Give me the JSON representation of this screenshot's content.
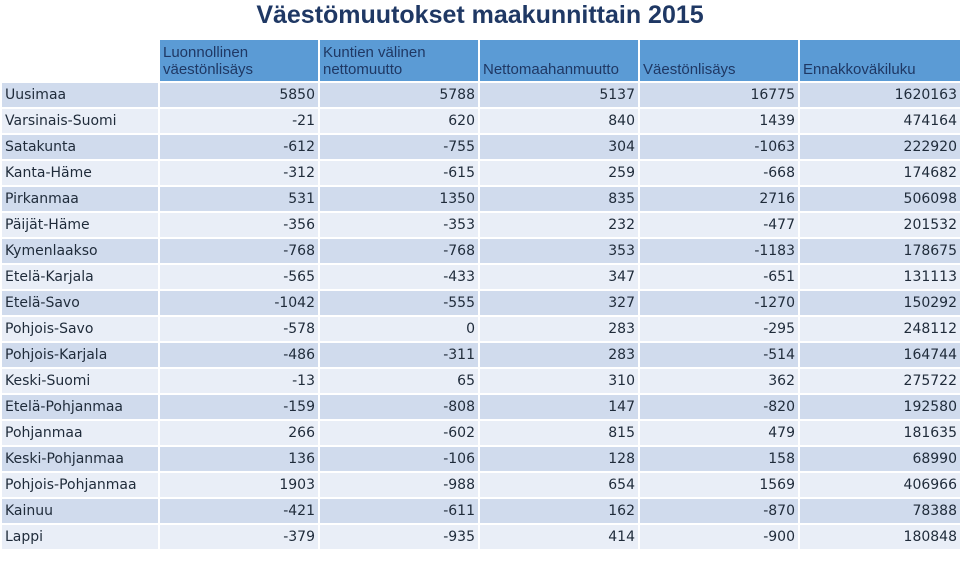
{
  "title": "Väestömuutokset maakunnittain 2015",
  "chart_data": {
    "type": "table",
    "title": "Väestömuutokset maakunnittain 2015",
    "columns": [
      "",
      "Luonnollinen väestönlisäys",
      "Kuntien välinen nettomuutto",
      "Nettomaahanmuutto",
      "Väestönlisäys",
      "Ennakkoväkiluku"
    ],
    "column_lines": [
      [],
      [
        "Luonnollinen",
        "väestönlisäys"
      ],
      [
        "Kuntien välinen",
        "nettomuutto"
      ],
      [
        "Nettomaahanmuutto"
      ],
      [
        "Väestönlisäys"
      ],
      [
        "Ennakkoväkiluku"
      ]
    ],
    "rows": [
      [
        "Uusimaa",
        "5850",
        "5788",
        "5137",
        "16775",
        "1620163"
      ],
      [
        "Varsinais-Suomi",
        "-21",
        "620",
        "840",
        "1439",
        "474164"
      ],
      [
        "Satakunta",
        "-612",
        "-755",
        "304",
        "-1063",
        "222920"
      ],
      [
        "Kanta-Häme",
        "-312",
        "-615",
        "259",
        "-668",
        "174682"
      ],
      [
        "Pirkanmaa",
        "531",
        "1350",
        "835",
        "2716",
        "506098"
      ],
      [
        "Päijät-Häme",
        "-356",
        "-353",
        "232",
        "-477",
        "201532"
      ],
      [
        "Kymenlaakso",
        "-768",
        "-768",
        "353",
        "-1183",
        "178675"
      ],
      [
        "Etelä-Karjala",
        "-565",
        "-433",
        "347",
        "-651",
        "131113"
      ],
      [
        "Etelä-Savo",
        "-1042",
        "-555",
        "327",
        "-1270",
        "150292"
      ],
      [
        "Pohjois-Savo",
        "-578",
        "0",
        "283",
        "-295",
        "248112"
      ],
      [
        "Pohjois-Karjala",
        "-486",
        "-311",
        "283",
        "-514",
        "164744"
      ],
      [
        "Keski-Suomi",
        "-13",
        "65",
        "310",
        "362",
        "275722"
      ],
      [
        "Etelä-Pohjanmaa",
        "-159",
        "-808",
        "147",
        "-820",
        "192580"
      ],
      [
        "Pohjanmaa",
        "266",
        "-602",
        "815",
        "479",
        "181635"
      ],
      [
        "Keski-Pohjanmaa",
        "136",
        "-106",
        "128",
        "158",
        "68990"
      ],
      [
        "Pohjois-Pohjanmaa",
        "1903",
        "-988",
        "654",
        "1569",
        "406966"
      ],
      [
        "Kainuu",
        "-421",
        "-611",
        "162",
        "-870",
        "78388"
      ],
      [
        "Lappi",
        "-379",
        "-935",
        "414",
        "-900",
        "180848"
      ]
    ]
  },
  "colors": {
    "header_fill": "#5b9bd5",
    "header_text": "#1f3864",
    "row_odd": "#d0dbed",
    "row_even": "#e9eef7",
    "title_text": "#1f3864"
  }
}
